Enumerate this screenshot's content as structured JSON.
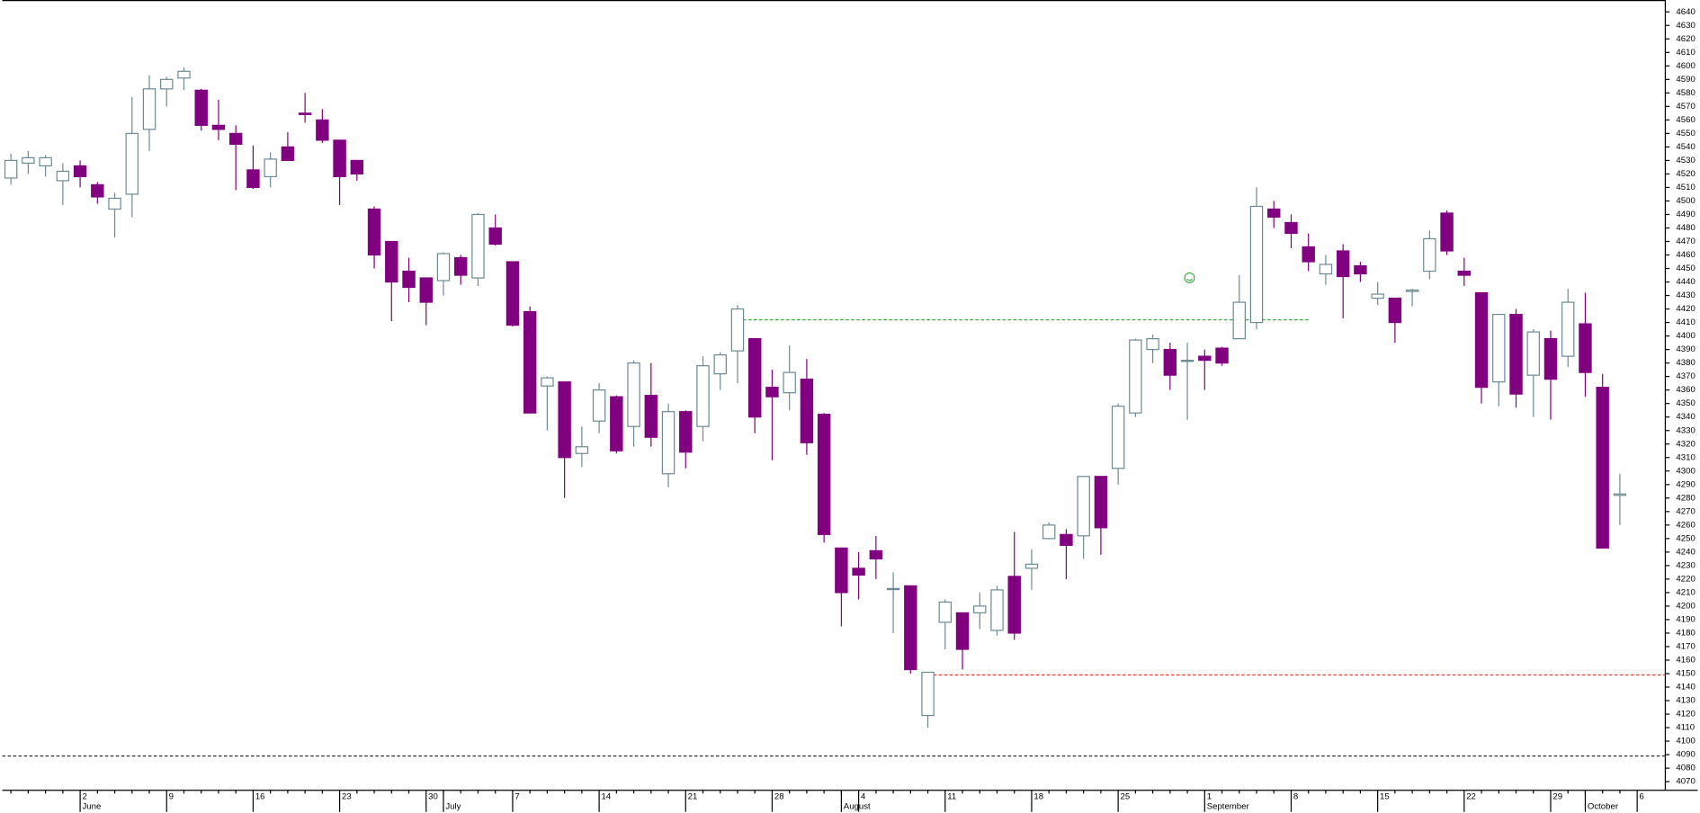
{
  "chart_data": {
    "type": "candlestick",
    "categories": [
      null,
      null,
      null,
      null,
      "2",
      null,
      null,
      null,
      null,
      "9",
      null,
      null,
      null,
      null,
      "16",
      null,
      null,
      null,
      null,
      "23",
      null,
      null,
      null,
      null,
      "30",
      null,
      null,
      null,
      null,
      "7",
      null,
      null,
      null,
      null,
      "14",
      null,
      null,
      null,
      null,
      "21",
      null,
      null,
      null,
      null,
      "28",
      null,
      null,
      null,
      null,
      "4",
      null,
      null,
      null,
      null,
      "11",
      null,
      null,
      null,
      null,
      "18",
      null,
      null,
      null,
      null,
      "25",
      null,
      null,
      null,
      null,
      "1",
      null,
      null,
      null,
      null,
      "8",
      null,
      null,
      null,
      null,
      "15",
      null,
      null,
      null,
      null,
      "22",
      null,
      null,
      null,
      null,
      "29",
      null,
      null,
      null,
      null,
      "6"
    ],
    "months": [
      null,
      null,
      null,
      null,
      "June",
      null,
      null,
      null,
      null,
      null,
      null,
      null,
      null,
      null,
      null,
      null,
      null,
      null,
      null,
      null,
      null,
      null,
      null,
      null,
      null,
      "July",
      null,
      null,
      null,
      null,
      null,
      null,
      null,
      null,
      null,
      null,
      null,
      null,
      null,
      null,
      null,
      null,
      null,
      null,
      null,
      null,
      null,
      null,
      "August",
      null,
      null,
      null,
      null,
      null,
      null,
      null,
      null,
      null,
      null,
      null,
      null,
      null,
      null,
      null,
      null,
      null,
      null,
      null,
      null,
      "September",
      null,
      null,
      null,
      null,
      null,
      null,
      null,
      null,
      null,
      null,
      null,
      null,
      null,
      null,
      null,
      null,
      null,
      null,
      null,
      null,
      null,
      "October",
      null,
      null,
      null
    ],
    "open": [
      4517,
      4528,
      4526,
      4515,
      4526,
      4512,
      4494,
      4505,
      4553,
      4583,
      4591,
      4582,
      4556,
      4550,
      4523,
      4518,
      4540,
      4565,
      4560,
      4545,
      4530,
      4494,
      4470,
      4448,
      4443,
      4441,
      4458,
      4443,
      4480,
      4455,
      4418,
      4363,
      4366,
      4313,
      4337,
      4355,
      4333,
      4356,
      4298,
      4344,
      4333,
      4372,
      4389,
      4398,
      4362,
      4358,
      4368,
      4342,
      4243,
      4228,
      4241,
      4213,
      4215,
      4119,
      4188,
      4195,
      4195,
      4182,
      4222,
      4228,
      4250,
      4253,
      4252,
      4296,
      4302,
      4343,
      4390,
      4390,
      4382,
      4385,
      4391,
      4398,
      4410,
      4494,
      4484,
      4466,
      4446,
      4463,
      4452,
      4428,
      4428,
      4433,
      4448,
      4491,
      4448,
      4432,
      4366,
      4416,
      4371,
      4398,
      4385,
      4409,
      4362,
      4282,
      null
    ],
    "high": [
      4535,
      4537,
      4534,
      4528,
      4530,
      4514,
      4506,
      4577,
      4593,
      4592,
      4599,
      4583,
      4575,
      4556,
      4541,
      4536,
      4551,
      4580,
      4568,
      4545,
      4530,
      4496,
      4470,
      4458,
      4443,
      4462,
      4460,
      4491,
      4490,
      4455,
      4422,
      4370,
      4366,
      4333,
      4365,
      4356,
      4382,
      4380,
      4350,
      4345,
      4385,
      4388,
      4423,
      4398,
      4375,
      4393,
      4383,
      4343,
      4243,
      4240,
      4252,
      4225,
      4215,
      4151,
      4205,
      4195,
      4210,
      4215,
      4255,
      4242,
      4262,
      4257,
      4296,
      4296,
      4350,
      4398,
      4401,
      4395,
      4395,
      4390,
      4392,
      4445,
      4510,
      4500,
      4490,
      4476,
      4460,
      4468,
      4455,
      4440,
      4428,
      4435,
      4478,
      4493,
      4458,
      4432,
      4416,
      4420,
      4405,
      4404,
      4435,
      4432,
      4372,
      4298,
      null
    ],
    "low": [
      4512,
      4520,
      4518,
      4497,
      4510,
      4498,
      4473,
      4488,
      4537,
      4570,
      4582,
      4552,
      4545,
      4508,
      4509,
      4510,
      4530,
      4558,
      4543,
      4497,
      4515,
      4450,
      4411,
      4425,
      4408,
      4430,
      4438,
      4437,
      4467,
      4407,
      4343,
      4330,
      4280,
      4303,
      4328,
      4313,
      4318,
      4318,
      4288,
      4302,
      4322,
      4360,
      4365,
      4328,
      4308,
      4345,
      4312,
      4247,
      4185,
      4205,
      4220,
      4180,
      4150,
      4110,
      4168,
      4153,
      4183,
      4178,
      4175,
      4212,
      4250,
      4220,
      4235,
      4238,
      4290,
      4340,
      4380,
      4360,
      4338,
      4360,
      4378,
      4398,
      4405,
      4480,
      4465,
      4448,
      4438,
      4413,
      4440,
      4423,
      4395,
      4422,
      4442,
      4460,
      4437,
      4350,
      4348,
      4347,
      4340,
      4338,
      4377,
      4355,
      4243,
      4260,
      null
    ],
    "close": [
      4530,
      4532,
      4532,
      4522,
      4518,
      4503,
      4502,
      4550,
      4583,
      4590,
      4596,
      4556,
      4553,
      4542,
      4510,
      4531,
      4530,
      4564,
      4545,
      4518,
      4520,
      4460,
      4440,
      4436,
      4425,
      4461,
      4445,
      4490,
      4468,
      4408,
      4343,
      4369,
      4310,
      4318,
      4360,
      4315,
      4380,
      4325,
      4344,
      4314,
      4378,
      4386,
      4420,
      4340,
      4355,
      4373,
      4321,
      4253,
      4210,
      4223,
      4235,
      4213,
      4153,
      4151,
      4203,
      4168,
      4200,
      4212,
      4180,
      4231,
      4260,
      4245,
      4296,
      4258,
      4348,
      4397,
      4398,
      4371,
      4382,
      4382,
      4380,
      4425,
      4496,
      4488,
      4476,
      4455,
      4453,
      4444,
      4446,
      4431,
      4410,
      4434,
      4472,
      4463,
      4445,
      4362,
      4416,
      4357,
      4403,
      4368,
      4425,
      4373,
      4243,
      4283,
      null
    ],
    "up_color": "#ffffff",
    "up_edge": "#6b8a92",
    "down_color": "#800080",
    "levels": [
      {
        "value": 4412,
        "color": "#3cb043",
        "from": 42,
        "to": 75
      },
      {
        "value": 4149,
        "color": "#ff3030",
        "from": 53
      },
      {
        "value": 4089,
        "color": "#333333"
      }
    ],
    "ylim": [
      4070,
      4640
    ],
    "yticks": [
      4070,
      4080,
      4090,
      4100,
      4110,
      4120,
      4130,
      4140,
      4150,
      4160,
      4170,
      4180,
      4190,
      4200,
      4210,
      4220,
      4230,
      4240,
      4250,
      4260,
      4270,
      4280,
      4290,
      4300,
      4310,
      4320,
      4330,
      4340,
      4350,
      4360,
      4370,
      4380,
      4390,
      4400,
      4410,
      4420,
      4430,
      4440,
      4450,
      4460,
      4470,
      4480,
      4490,
      4500,
      4510,
      4520,
      4530,
      4540,
      4550,
      4560,
      4570,
      4580,
      4590,
      4600,
      4610,
      4620,
      4630,
      4640
    ]
  }
}
